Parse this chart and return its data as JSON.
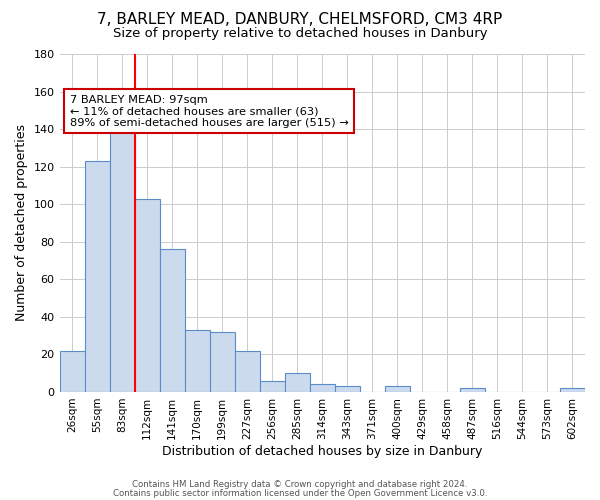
{
  "title": "7, BARLEY MEAD, DANBURY, CHELMSFORD, CM3 4RP",
  "subtitle": "Size of property relative to detached houses in Danbury",
  "xlabel": "Distribution of detached houses by size in Danbury",
  "ylabel": "Number of detached properties",
  "bar_labels": [
    "26sqm",
    "55sqm",
    "83sqm",
    "112sqm",
    "141sqm",
    "170sqm",
    "199sqm",
    "227sqm",
    "256sqm",
    "285sqm",
    "314sqm",
    "343sqm",
    "371sqm",
    "400sqm",
    "429sqm",
    "458sqm",
    "487sqm",
    "516sqm",
    "544sqm",
    "573sqm",
    "602sqm"
  ],
  "bar_heights": [
    22,
    123,
    145,
    103,
    76,
    33,
    32,
    22,
    6,
    10,
    4,
    3,
    0,
    3,
    0,
    0,
    2,
    0,
    0,
    0,
    2
  ],
  "bar_color": "#ccdaee",
  "bar_edgecolor": "#5b8cc8",
  "bar_width": 1.0,
  "redline_x": 2.5,
  "ylim": [
    0,
    180
  ],
  "yticks": [
    0,
    20,
    40,
    60,
    80,
    100,
    120,
    140,
    160,
    180
  ],
  "annotation_title": "7 BARLEY MEAD: 97sqm",
  "annotation_line1": "← 11% of detached houses are smaller (63)",
  "annotation_line2": "89% of semi-detached houses are larger (515) →",
  "annotation_box_color": "#ffffff",
  "annotation_box_edgecolor": "#cc0000",
  "footer1": "Contains HM Land Registry data © Crown copyright and database right 2024.",
  "footer2": "Contains public sector information licensed under the Open Government Licence v3.0.",
  "background_color": "#ffffff",
  "grid_color": "#cccccc",
  "title_fontsize": 11,
  "subtitle_fontsize": 9.5,
  "figsize": [
    6.0,
    5.0
  ],
  "dpi": 100
}
